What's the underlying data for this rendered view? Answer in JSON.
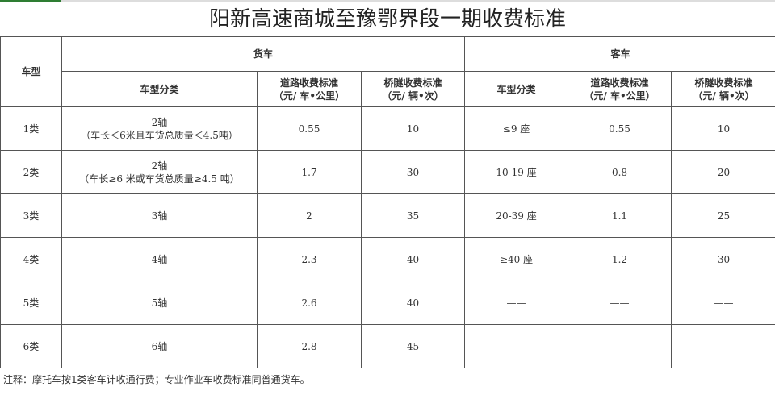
{
  "title": "阳新高速商城至豫鄂界段一期收费标准",
  "colors": {
    "accent": "#2e7d32",
    "border": "#555555"
  },
  "header": {
    "vehicle_type": "车型",
    "truck": "货车",
    "bus": "客车",
    "classification": "车型分类",
    "road_fee": "道路收费标准",
    "road_fee_unit": "（元/ 车•公里）",
    "bridge_fee": "桥隧收费标准",
    "bridge_fee_unit": "（元/ 辆•次）"
  },
  "rows": [
    {
      "type": "1类",
      "truck_class": "2轴",
      "truck_note": "（车长＜6米且车货总质量＜4.5吨）",
      "truck_road": "0.55",
      "truck_bridge": "10",
      "bus_class": "≤9 座",
      "bus_road": "0.55",
      "bus_bridge": "10"
    },
    {
      "type": "2类",
      "truck_class": "2轴",
      "truck_note": "（车长≥6 米或车货总质量≥4.5 吨）",
      "truck_road": "1.7",
      "truck_bridge": "30",
      "bus_class": "10-19 座",
      "bus_road": "0.8",
      "bus_bridge": "20"
    },
    {
      "type": "3类",
      "truck_class": "3轴",
      "truck_note": "",
      "truck_road": "2",
      "truck_bridge": "35",
      "bus_class": "20-39 座",
      "bus_road": "1.1",
      "bus_bridge": "25"
    },
    {
      "type": "4类",
      "truck_class": "4轴",
      "truck_note": "",
      "truck_road": "2.3",
      "truck_bridge": "40",
      "bus_class": "≥40 座",
      "bus_road": "1.2",
      "bus_bridge": "30"
    },
    {
      "type": "5类",
      "truck_class": "5轴",
      "truck_note": "",
      "truck_road": "2.6",
      "truck_bridge": "40",
      "bus_class": "——",
      "bus_road": "——",
      "bus_bridge": "——"
    },
    {
      "type": "6类",
      "truck_class": "6轴",
      "truck_note": "",
      "truck_road": "2.8",
      "truck_bridge": "45",
      "bus_class": "——",
      "bus_road": "——",
      "bus_bridge": "——"
    }
  ],
  "note": "注释：摩托车按1类客车计收通行费；专业作业车收费标准同普通货车。"
}
